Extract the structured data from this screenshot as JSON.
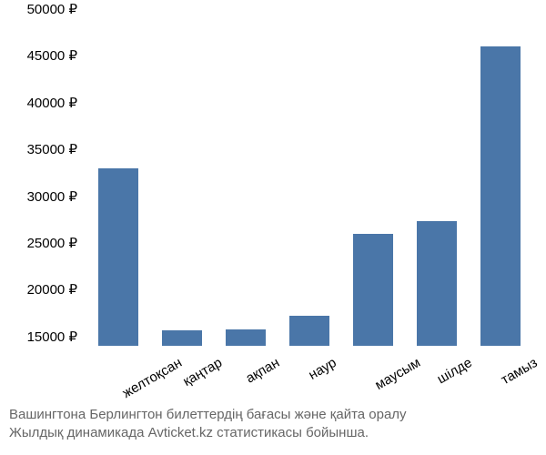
{
  "chart": {
    "type": "bar",
    "categories": [
      "желтоқсан",
      "қаңтар",
      "ақпан",
      "наур",
      "маусым",
      "шілде",
      "тамыз"
    ],
    "values": [
      33000,
      15700,
      15800,
      17200,
      26000,
      27300,
      46000
    ],
    "bar_color": "#4a76a8",
    "background_color": "#ffffff",
    "ylim": [
      14000,
      50000
    ],
    "ytick_step": 5000,
    "yticks": [
      15000,
      20000,
      25000,
      30000,
      35000,
      40000,
      45000,
      50000
    ],
    "ytick_labels": [
      "15000 ₽",
      "20000 ₽",
      "25000 ₽",
      "30000 ₽",
      "35000 ₽",
      "40000 ₽",
      "45000 ₽",
      "50000 ₽"
    ],
    "label_fontsize": 15,
    "bar_width": 0.62,
    "x_label_rotation": -30
  },
  "caption": {
    "line1": "Вашингтона Берлингтон билеттердің бағасы және қайта оралу",
    "line2": "Жылдық динамикада Avticket.kz статистикасы бойынша."
  }
}
